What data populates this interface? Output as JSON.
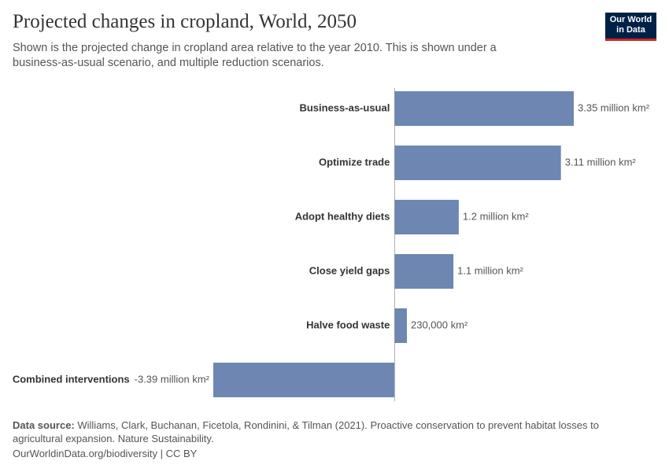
{
  "chart_data": {
    "type": "bar",
    "orientation": "horizontal",
    "title": "Projected changes in cropland, World, 2050",
    "subtitle": "Shown is the projected change in cropland area relative to the year 2010. This is shown under a business-as-usual scenario, and multiple reduction scenarios.",
    "categories": [
      "Business-as-usual",
      "Optimize trade",
      "Adopt healthy diets",
      "Close yield gaps",
      "Halve food waste",
      "Combined interventions"
    ],
    "values": [
      3350000,
      3110000,
      1200000,
      1100000,
      230000,
      -3390000
    ],
    "value_labels": [
      "3.35 million km²",
      "3.11 million km²",
      "1.2 million km²",
      "1.1 million km²",
      "230,000 km²",
      "-3.39 million km²"
    ],
    "color": "#6d87b2"
  },
  "logo": {
    "line1": "Our World",
    "line2": "in Data"
  },
  "footer": {
    "source_label": "Data source:",
    "source_text": "Williams, Clark, Buchanan, Ficetola, Rondinini, & Tilman (2021). Proactive conservation to prevent habitat losses to agricultural expansion. Nature Sustainability.",
    "url": "OurWorldinData.org/biodiversity | CC BY"
  }
}
